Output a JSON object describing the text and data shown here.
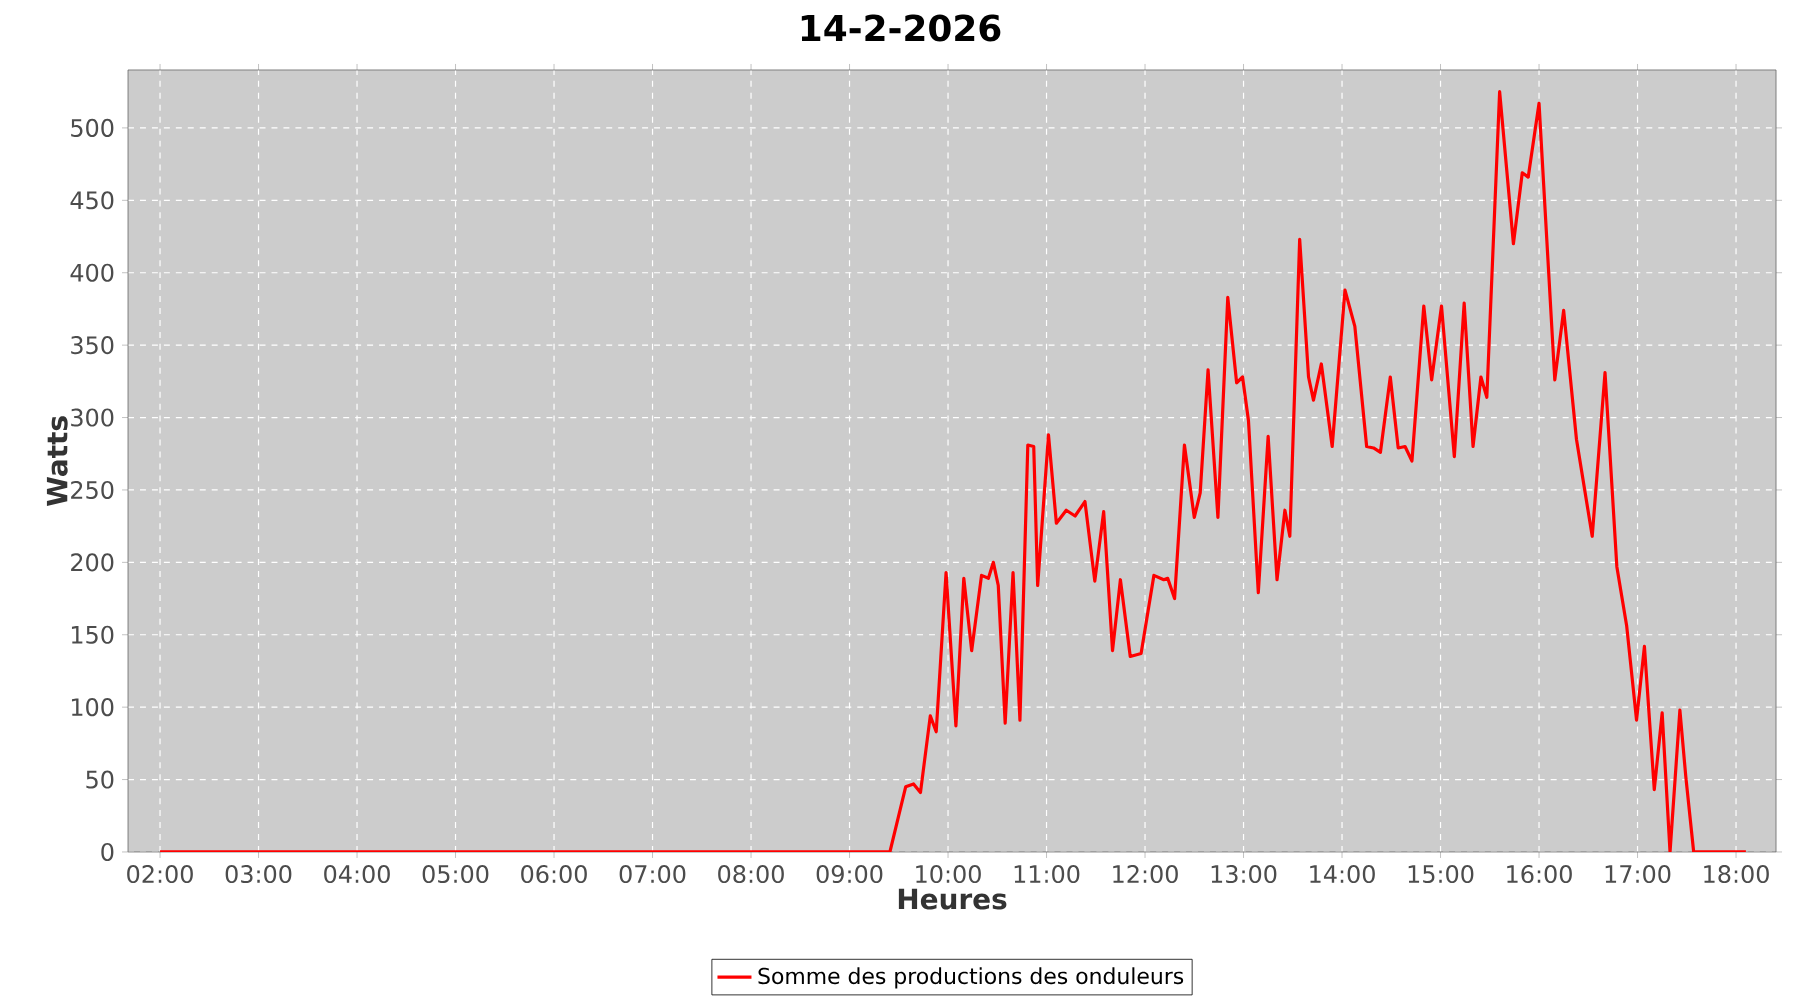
{
  "chart_data": {
    "type": "line",
    "title": "14-2-2026",
    "xlabel": "Heures",
    "ylabel": "Watts",
    "xlim": [
      1.675,
      18.406
    ],
    "ylim": [
      0,
      540
    ],
    "xticks": [
      {
        "value": 2,
        "label": "02:00"
      },
      {
        "value": 3,
        "label": "03:00"
      },
      {
        "value": 4,
        "label": "04:00"
      },
      {
        "value": 5,
        "label": "05:00"
      },
      {
        "value": 6,
        "label": "06:00"
      },
      {
        "value": 7,
        "label": "07:00"
      },
      {
        "value": 8,
        "label": "08:00"
      },
      {
        "value": 9,
        "label": "09:00"
      },
      {
        "value": 10,
        "label": "10:00"
      },
      {
        "value": 11,
        "label": "11:00"
      },
      {
        "value": 12,
        "label": "12:00"
      },
      {
        "value": 13,
        "label": "13:00"
      },
      {
        "value": 14,
        "label": "14:00"
      },
      {
        "value": 15,
        "label": "15:00"
      },
      {
        "value": 16,
        "label": "16:00"
      },
      {
        "value": 17,
        "label": "17:00"
      },
      {
        "value": 18,
        "label": "18:00"
      }
    ],
    "yticks": [
      0,
      50,
      100,
      150,
      200,
      250,
      300,
      350,
      400,
      450,
      500
    ],
    "grid": true,
    "legend": "bottom",
    "line_style": "solid",
    "x": [
      2.0,
      9.41,
      9.57,
      9.65,
      9.72,
      9.82,
      9.88,
      9.98,
      10.08,
      10.16,
      10.24,
      10.34,
      10.41,
      10.46,
      10.51,
      10.58,
      10.66,
      10.73,
      10.81,
      10.87,
      10.91,
      11.02,
      11.1,
      11.2,
      11.29,
      11.39,
      11.49,
      11.58,
      11.67,
      11.75,
      11.85,
      11.96,
      12.09,
      12.19,
      12.23,
      12.3,
      12.4,
      12.5,
      12.56,
      12.64,
      12.74,
      12.84,
      12.93,
      12.99,
      13.05,
      13.15,
      13.25,
      13.34,
      13.42,
      13.47,
      13.57,
      13.66,
      13.71,
      13.79,
      13.9,
      14.03,
      14.13,
      14.25,
      14.32,
      14.39,
      14.49,
      14.57,
      14.64,
      14.71,
      14.83,
      14.91,
      15.01,
      15.14,
      15.24,
      15.33,
      15.41,
      15.47,
      15.6,
      15.74,
      15.83,
      15.89,
      16.0,
      16.16,
      16.25,
      16.38,
      16.54,
      16.67,
      16.79,
      16.89,
      16.99,
      17.07,
      17.17,
      17.25,
      17.33,
      17.43,
      17.49,
      17.57,
      18.1
    ],
    "series": [
      {
        "name": "Somme des productions des onduleurs",
        "color": "#ff0000",
        "values": [
          0,
          0,
          45,
          47,
          41,
          94,
          83,
          193,
          87,
          189,
          139,
          191,
          189,
          200,
          184,
          89,
          193,
          91,
          281,
          280,
          184,
          288,
          227,
          236,
          232,
          242,
          187,
          235,
          139,
          188,
          135,
          137,
          191,
          188,
          189,
          175,
          281,
          231,
          248,
          333,
          231,
          383,
          324,
          328,
          298,
          179,
          287,
          188,
          236,
          218,
          423,
          328,
          312,
          337,
          280,
          388,
          363,
          280,
          279,
          276,
          328,
          279,
          280,
          270,
          377,
          326,
          377,
          273,
          379,
          280,
          328,
          314,
          525,
          420,
          469,
          466,
          517,
          326,
          374,
          285,
          218,
          331,
          197,
          156,
          91,
          142,
          43,
          96,
          0,
          98,
          52,
          0,
          0
        ]
      }
    ]
  }
}
